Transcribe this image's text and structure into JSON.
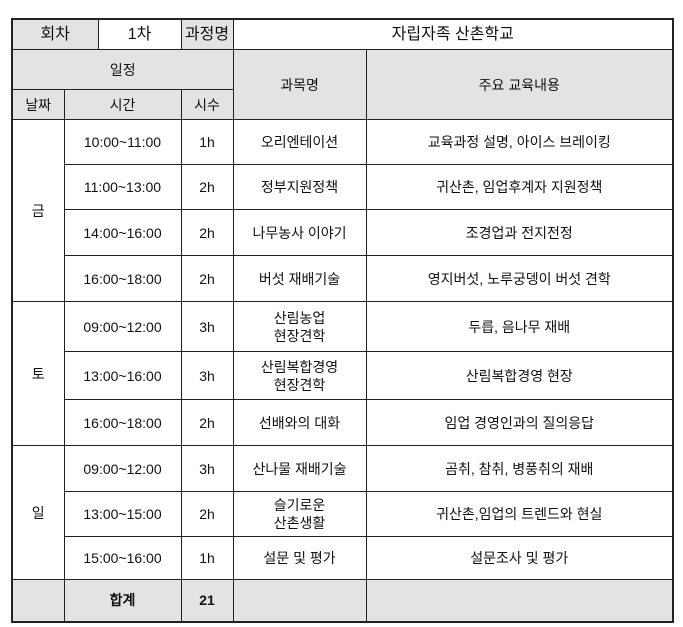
{
  "header": {
    "session_label": "회차",
    "session_value": "1차",
    "course_label": "과정명",
    "course_value": "자립자족 산촌학교"
  },
  "columns": {
    "schedule": "일정",
    "date": "날짜",
    "time": "시간",
    "hours": "시수",
    "subject": "과목명",
    "content": "주요 교육내용"
  },
  "days": [
    {
      "day": "금",
      "rows": [
        {
          "time": "10:00~11:00",
          "hours": "1h",
          "subject": "오리엔테이션",
          "content": "교육과정 설명, 아이스 브레이킹"
        },
        {
          "time": "11:00~13:00",
          "hours": "2h",
          "subject": "정부지원정책",
          "content": "귀산촌, 임업후계자 지원정책"
        },
        {
          "time": "14:00~16:00",
          "hours": "2h",
          "subject": "나무농사 이야기",
          "content": "조경업과 전지전정"
        },
        {
          "time": "16:00~18:00",
          "hours": "2h",
          "subject": "버섯 재배기술",
          "content": "영지버섯, 노루궁뎅이 버섯 견학"
        }
      ]
    },
    {
      "day": "토",
      "rows": [
        {
          "time": "09:00~12:00",
          "hours": "3h",
          "subject": "산림농업\n현장견학",
          "content": "두릅, 음나무 재배"
        },
        {
          "time": "13:00~16:00",
          "hours": "3h",
          "subject": "산림복합경영\n현장견학",
          "content": "산림복합경영 현장"
        },
        {
          "time": "16:00~18:00",
          "hours": "2h",
          "subject": "선배와의 대화",
          "content": "임업 경영인과의 질의응답"
        }
      ]
    },
    {
      "day": "일",
      "rows": [
        {
          "time": "09:00~12:00",
          "hours": "3h",
          "subject": "산나물 재배기술",
          "content": "곰취, 참취, 병풍취의 재배"
        },
        {
          "time": "13:00~15:00",
          "hours": "2h",
          "subject": "슬기로운\n산촌생활",
          "content": "귀산촌,임업의 트렌드와 현실"
        },
        {
          "time": "15:00~16:00",
          "hours": "1h",
          "subject": "설문 및 평가",
          "content": "설문조사 및 평가"
        }
      ]
    }
  ],
  "total": {
    "label": "합계",
    "hours": "21"
  }
}
